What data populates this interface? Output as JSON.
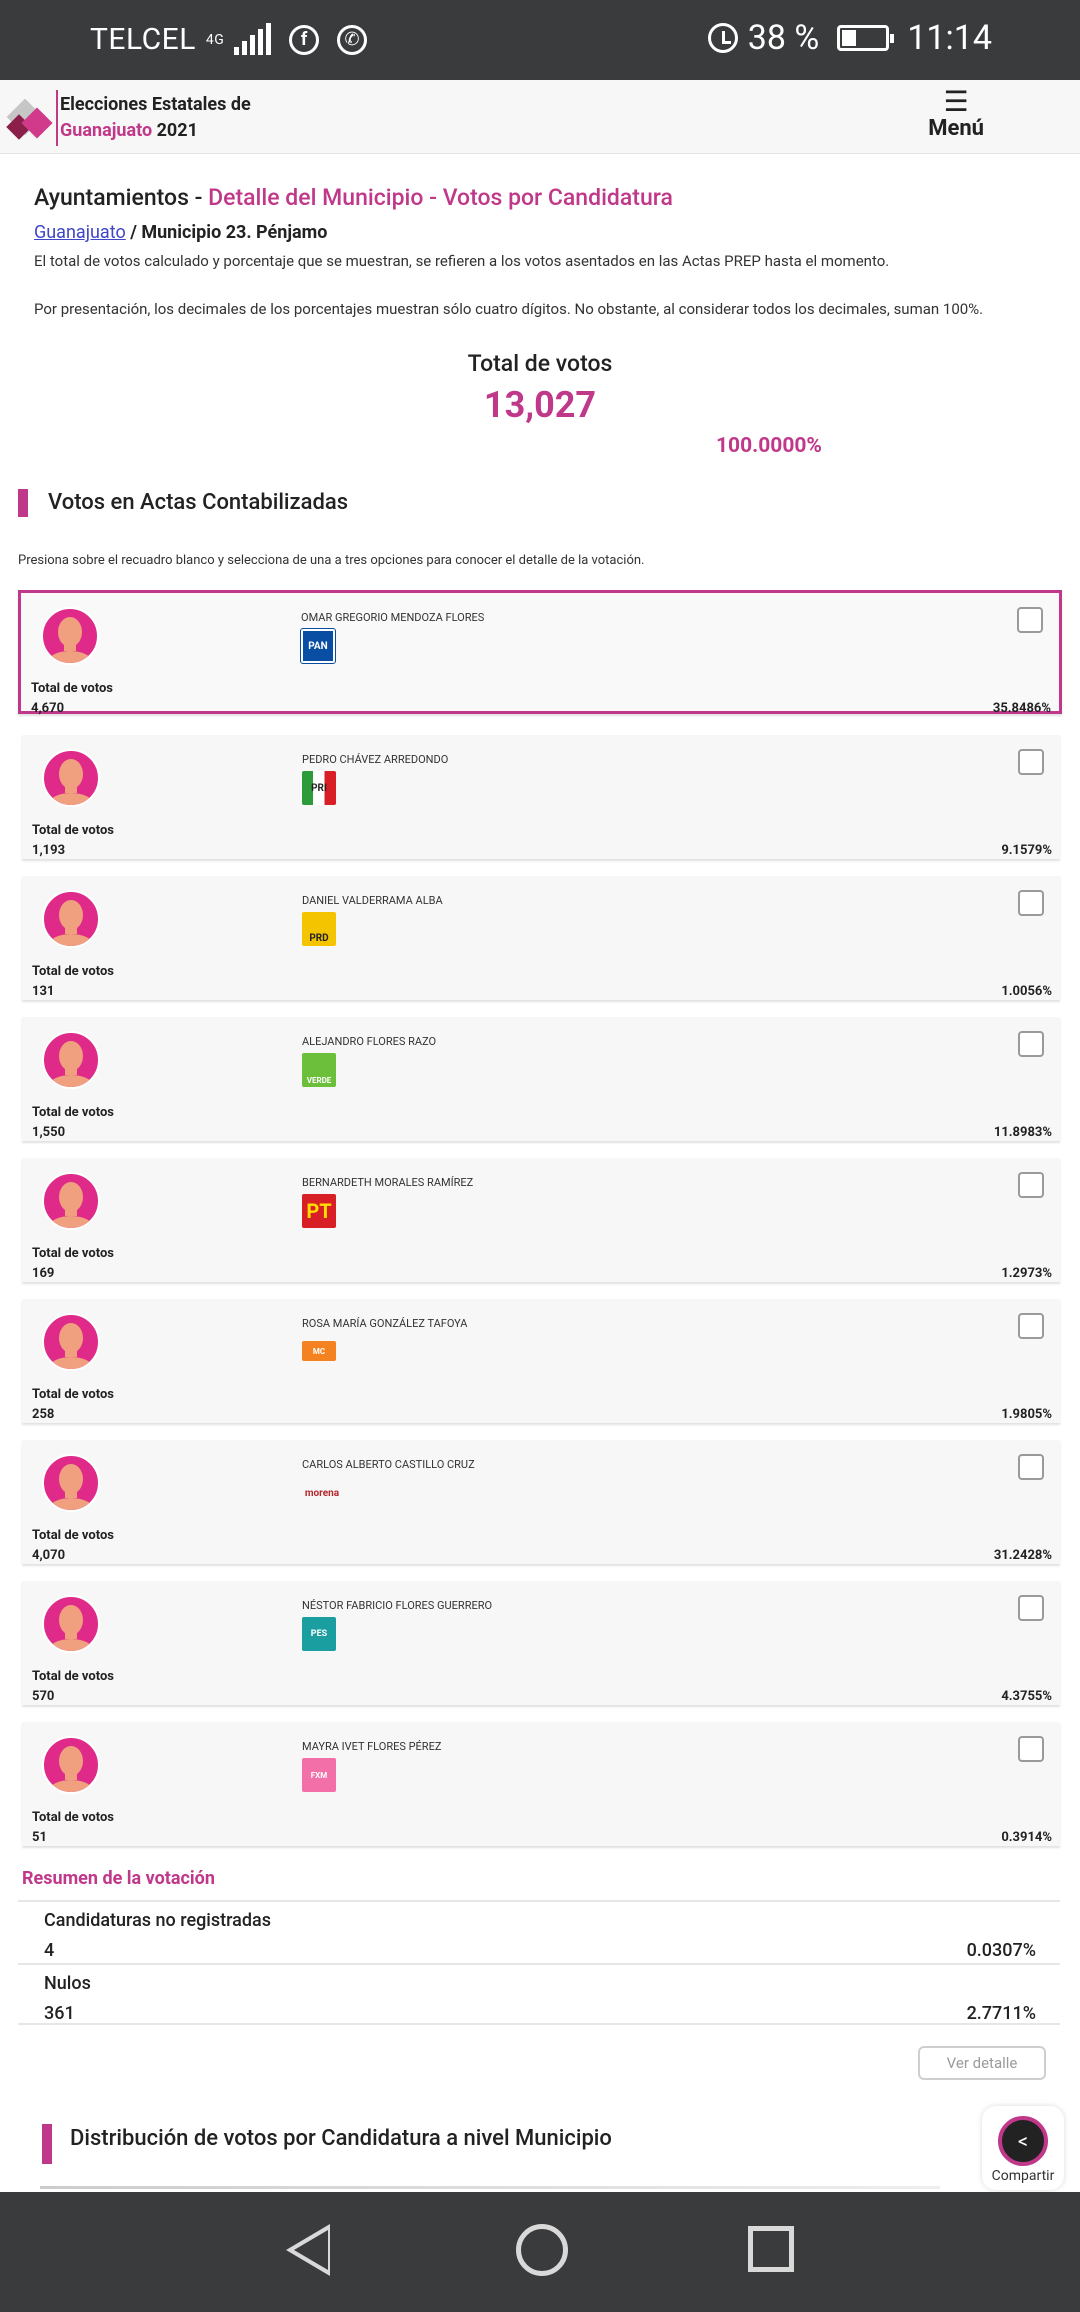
{
  "status_bar": {
    "carrier": "TELCEL",
    "network": "4G",
    "battery": "38 %",
    "time": "11:14"
  },
  "header": {
    "title_line1": "Elecciones Estatales de",
    "title_state": "Guanajuato",
    "title_year": "2021",
    "menu_label": "Menú"
  },
  "page": {
    "title_prefix": "Ayuntamientos - ",
    "title_detail": "Detalle del Municipio - Votos por Candidatura",
    "breadcrumb_link": "Guanajuato",
    "breadcrumb_rest": " / Municipio 23. Pénjamo",
    "info_1": "El total de votos calculado y porcentaje que se muestran, se refieren a los votos asentados en las Actas PREP hasta el momento.",
    "info_2": "Por presentación, los decimales de los porcentajes muestran sólo cuatro dígitos. No obstante, al considerar todos los decimales, suman 100%.",
    "total_label": "Total de votos",
    "total_value": "13,027",
    "total_pct": "100.0000%",
    "section_votes": "Votos en Actas Contabilizadas",
    "instruction": "Presiona sobre el recuadro blanco y selecciona de una a tres opciones para conocer el detalle de la votación."
  },
  "candidates": [
    {
      "name": "OMAR GREGORIO MENDOZA FLORES",
      "party": "PAN",
      "party_color": "#0a4ea3",
      "votes_label": "Total de votos",
      "votes": "4,670",
      "pct": "35.8486%"
    },
    {
      "name": "PEDRO CHÁVEZ ARREDONDO",
      "party": "PRI",
      "party_color": "#2e9b3a",
      "votes_label": "Total de votos",
      "votes": "1,193",
      "pct": "9.1579%"
    },
    {
      "name": "DANIEL VALDERRAMA ALBA",
      "party": "PRD",
      "party_color": "#f5c400",
      "votes_label": "Total de votos",
      "votes": "131",
      "pct": "1.0056%"
    },
    {
      "name": "ALEJANDRO FLORES RAZO",
      "party": "VERDE",
      "party_color": "#6bbf3a",
      "votes_label": "Total de votos",
      "votes": "1,550",
      "pct": "11.8983%"
    },
    {
      "name": "BERNARDETH MORALES RAMÍREZ",
      "party": "PT",
      "party_color": "#d81f26",
      "votes_label": "Total de votos",
      "votes": "169",
      "pct": "1.2973%"
    },
    {
      "name": "ROSA MARÍA GONZÁLEZ TAFOYA",
      "party": "MC",
      "party_color": "#f58220",
      "votes_label": "Total de votos",
      "votes": "258",
      "pct": "1.9805%"
    },
    {
      "name": "CARLOS ALBERTO CASTILLO CRUZ",
      "party": "morena",
      "party_color": "#b3282d",
      "votes_label": "Total de votos",
      "votes": "4,070",
      "pct": "31.2428%"
    },
    {
      "name": "NÉSTOR FABRICIO FLORES GUERRERO",
      "party": "PES",
      "party_color": "#1a9ea0",
      "votes_label": "Total de votos",
      "votes": "570",
      "pct": "4.3755%"
    },
    {
      "name": "MAYRA IVET FLORES PÉREZ",
      "party": "FXM",
      "party_color": "#f36fa8",
      "votes_label": "Total de votos",
      "votes": "51",
      "pct": "0.3914%"
    }
  ],
  "summary": {
    "title": "Resumen de la votación",
    "rows": [
      {
        "label": "Candidaturas no registradas",
        "value": "4",
        "pct": "0.0307%"
      },
      {
        "label": "Nulos",
        "value": "361",
        "pct": "2.7711%"
      }
    ],
    "detail_button": "Ver detalle"
  },
  "distribution": {
    "title": "Distribución de votos por Candidatura a nivel Municipio"
  },
  "share": {
    "label": "Compartir"
  },
  "colors": {
    "accent": "#c0388a",
    "link": "#3e46c8"
  }
}
